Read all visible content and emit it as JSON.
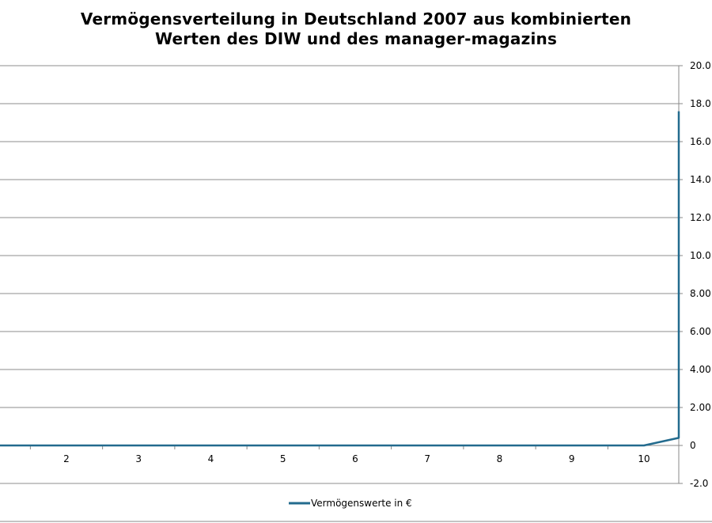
{
  "chart_data": {
    "type": "line",
    "title_lines": [
      "Vermögensverteilung  in Deutschland 2007 aus kombinierten",
      "Werten des DIW und des manager-magazins"
    ],
    "xlabel": "",
    "ylabel": "",
    "x_ticks": [
      "2",
      "3",
      "4",
      "5",
      "6",
      "7",
      "8",
      "9",
      "10"
    ],
    "y_ticks": [
      "20.0",
      "18.0",
      "16.0",
      "14.0",
      "12.0",
      "10.0",
      "8.00",
      "6.00",
      "4.00",
      "2.00",
      "0",
      "-2.0"
    ],
    "grid": true,
    "legend_position": "bottom",
    "series": [
      {
        "name": "Vermögenswerte  in €",
        "color": "#236b8e",
        "points": [
          {
            "x": 1,
            "y": 0
          },
          {
            "x": 2,
            "y": 0
          },
          {
            "x": 3,
            "y": 0
          },
          {
            "x": 4,
            "y": 0
          },
          {
            "x": 5,
            "y": 0
          },
          {
            "x": 6,
            "y": 0
          },
          {
            "x": 7,
            "y": 0
          },
          {
            "x": 8,
            "y": 0
          },
          {
            "x": 9,
            "y": 0
          },
          {
            "x": 10,
            "y": 0
          },
          {
            "x": 10.5,
            "y": 0.4
          },
          {
            "x": 10.5,
            "y": 17.6
          }
        ]
      }
    ]
  }
}
